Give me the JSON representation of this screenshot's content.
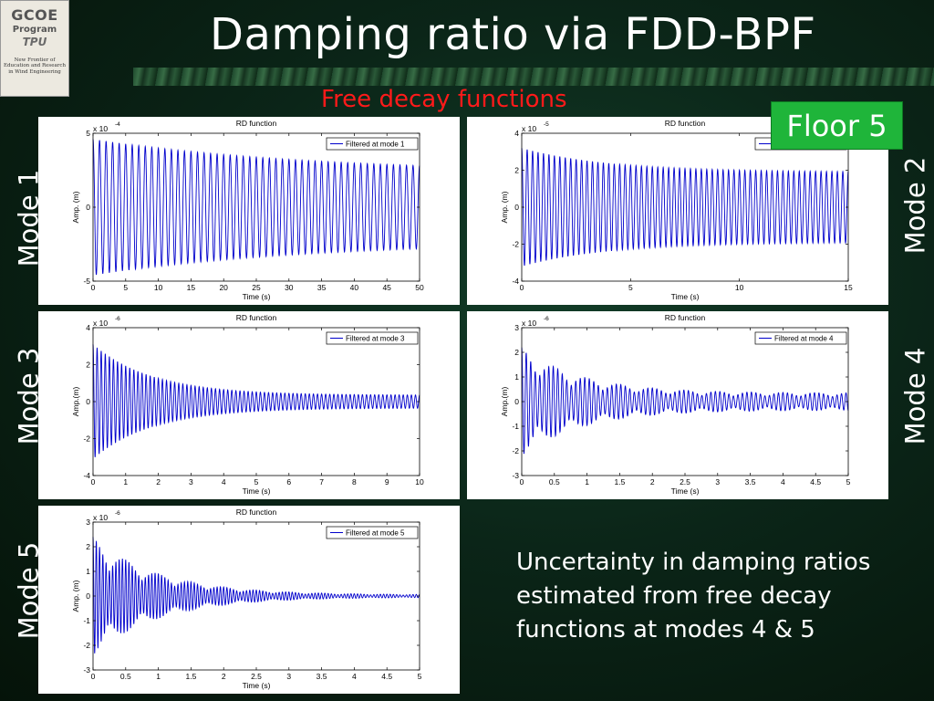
{
  "logo": {
    "line1": "GCOE",
    "line2": "Program",
    "line3": "TPU",
    "tagline": "New Frontier of Education and Research in Wind Engineering"
  },
  "title": "Damping ratio via FDD-BPF",
  "subtitle": "Free decay functions",
  "floor_label": "Floor 5",
  "mode_labels": [
    "Mode 1",
    "Mode 2",
    "Mode 3",
    "Mode 4",
    "Mode 5"
  ],
  "note": "Uncertainty in damping ratios estimated from free decay functions at modes 4 & 5",
  "colors": {
    "signal": "#0000cc",
    "floor_badge": "#1fb53a",
    "subtitle": "#ff1a1a"
  },
  "chart_data": [
    {
      "type": "line",
      "title": "RD function",
      "xlabel": "Time (s)",
      "ylabel": "Amp. (m)",
      "scale_label": "x 10",
      "scale_exp": "-4",
      "legend": "Filtered at mode 1",
      "xlim": [
        0,
        50
      ],
      "ylim": [
        -5,
        5
      ],
      "xticks": [
        "0",
        "5",
        "10",
        "15",
        "20",
        "25",
        "30",
        "35",
        "40",
        "45",
        "50"
      ],
      "yticks": [
        "5",
        "0",
        "-5"
      ],
      "signal": {
        "frequency_hz": 1.0,
        "amp_start": 4.6,
        "amp_end": 2.3,
        "decay_rate": 0.03
      }
    },
    {
      "type": "line",
      "title": "RD function",
      "xlabel": "Time (s)",
      "ylabel": "Amp. (m)",
      "scale_label": "x 10",
      "scale_exp": "-5",
      "legend": "Filtered at mode 2",
      "xlim": [
        0,
        15
      ],
      "ylim": [
        -4,
        4
      ],
      "xticks": [
        "0",
        "5",
        "10",
        "15"
      ],
      "yticks": [
        "4",
        "2",
        "0",
        "-2",
        "-4"
      ],
      "signal": {
        "frequency_hz": 4.0,
        "amp_start": 3.2,
        "amp_end": 1.9,
        "decay_rate": 0.25
      }
    },
    {
      "type": "line",
      "title": "RD function",
      "xlabel": "Time (s)",
      "ylabel": "Amp.(m)",
      "scale_label": "x 10",
      "scale_exp": "-6",
      "legend": "Filtered at mode 3",
      "xlim": [
        0,
        10
      ],
      "ylim": [
        -4,
        4
      ],
      "xticks": [
        "0",
        "1",
        "2",
        "3",
        "4",
        "5",
        "6",
        "7",
        "8",
        "9",
        "10"
      ],
      "yticks": [
        "4",
        "2",
        "0",
        "-2",
        "-4"
      ],
      "signal": {
        "frequency_hz": 8.0,
        "amp_start": 3.1,
        "amp_end": 0.35,
        "decay_rate": 0.55
      }
    },
    {
      "type": "line",
      "title": "RD function",
      "xlabel": "Time (s)",
      "ylabel": "Amp.(m)",
      "scale_label": "x 10",
      "scale_exp": "-6",
      "legend": "Filtered at mode 4",
      "xlim": [
        0,
        5
      ],
      "ylim": [
        -3,
        3
      ],
      "xticks": [
        "0",
        "0.5",
        "1",
        "1.5",
        "2",
        "2.5",
        "3",
        "3.5",
        "4",
        "4.5",
        "5"
      ],
      "yticks": [
        "3",
        "2",
        "1",
        "0",
        "-1",
        "-2",
        "-3"
      ],
      "signal": {
        "frequency_hz": 14.5,
        "amp_start": 2.2,
        "amp_end": 0.35,
        "decay_rate": 1.1,
        "beat_hz": 2.0
      }
    },
    {
      "type": "line",
      "title": "RD function",
      "xlabel": "Time (s)",
      "ylabel": "Amp. (m)",
      "scale_label": "x 10",
      "scale_exp": "-6",
      "legend": "Filtered at mode 5",
      "xlim": [
        0,
        5
      ],
      "ylim": [
        -3,
        3
      ],
      "xticks": [
        "0",
        "0.5",
        "1",
        "1.5",
        "2",
        "2.5",
        "3",
        "3.5",
        "4",
        "4.5",
        "5"
      ],
      "yticks": [
        "3",
        "2",
        "1",
        "0",
        "-1",
        "-2",
        "-3"
      ],
      "signal": {
        "frequency_hz": 20.0,
        "amp_start": 2.4,
        "amp_end": 0.05,
        "decay_rate": 1.0,
        "beat_hz": 2.0
      }
    }
  ]
}
